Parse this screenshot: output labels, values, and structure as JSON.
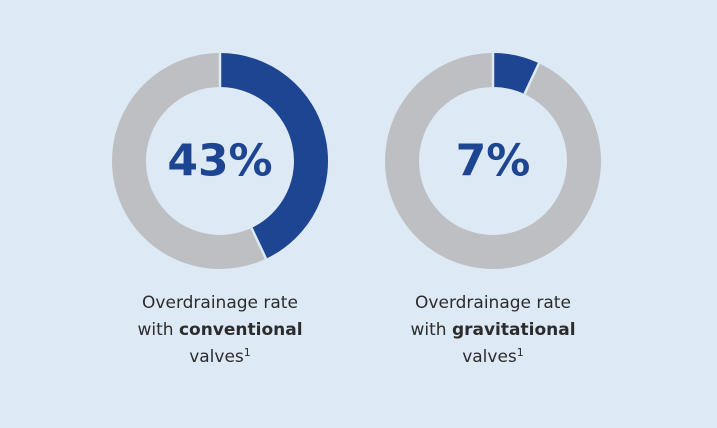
{
  "colors": {
    "background": "#ddeaf6",
    "highlight": "#1e4591",
    "remainder": "#bdbfc2",
    "text": "#2c2c2c"
  },
  "chart_data": [
    {
      "type": "pie",
      "variant": "donut",
      "value": 43,
      "label": "43%",
      "caption": {
        "line1": "Overdrainage rate",
        "prefix": "with ",
        "emphasis": "conventional",
        "line3": "valves",
        "footnote": "1"
      }
    },
    {
      "type": "pie",
      "variant": "donut",
      "value": 7,
      "label": "7%",
      "caption": {
        "line1": "Overdrainage rate",
        "prefix": "with ",
        "emphasis": "gravitational",
        "line3": "valves",
        "footnote": "1"
      }
    }
  ]
}
